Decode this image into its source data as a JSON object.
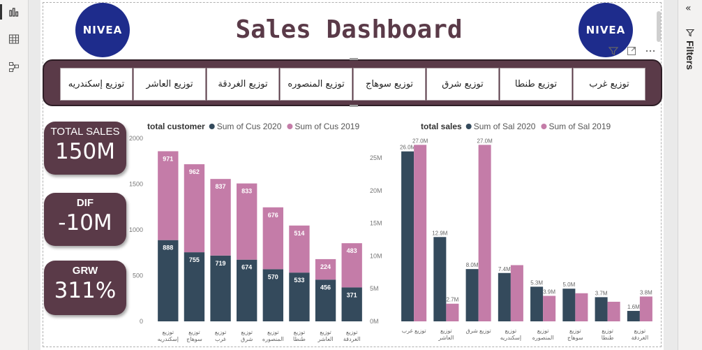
{
  "dashboard": {
    "title": "Sales Dashboard",
    "logo_text": "NIVEA"
  },
  "filters_pane": {
    "label": "Filters"
  },
  "tabs": [
    "توزيع إسكندريه",
    "توزيع العاشر",
    "توزيع الغردقة",
    "توزيع المنصوره",
    "توزيع سوهاج",
    "توزيع شرق",
    "توزيع طنطا",
    "توزيع غرب"
  ],
  "kpis": [
    {
      "label": "TOTAL SALES",
      "value": "150M"
    },
    {
      "label": "DIF",
      "value": "-10M"
    },
    {
      "label": "GRW",
      "value": "311%"
    }
  ],
  "colors": {
    "accent": "#5a3a48",
    "series_2020": "#344a5c",
    "series_2019": "#c47ca8",
    "logo": "#1e2c8c"
  },
  "chart_data": [
    {
      "type": "bar",
      "stacked": true,
      "title": "total customer",
      "categories": [
        "توزيع إسكندريه",
        "توزيع سوهاج",
        "توزيع غرب",
        "توزيع شرق",
        "توزيع المنصوره",
        "توزيع طنطا",
        "توزيع العاشر",
        "توزيع الغردقة"
      ],
      "series": [
        {
          "name": "Sum of Cus 2020",
          "values": [
            888,
            755,
            719,
            674,
            570,
            533,
            456,
            371
          ]
        },
        {
          "name": "Sum of Cus  2019",
          "values": [
            971,
            962,
            837,
            833,
            676,
            514,
            224,
            483
          ]
        }
      ],
      "ylim": [
        0,
        2000
      ],
      "yticks": [
        "0",
        "500",
        "1000",
        "1500",
        "2000"
      ],
      "legend": "top"
    },
    {
      "type": "bar",
      "stacked": false,
      "title": "total sales",
      "categories": [
        "توزيع غرب",
        "توزيع العاشر",
        "توزيع شرق",
        "توزيع إسكندريه",
        "توزيع المنصوره",
        "توزيع سوهاج",
        "توزيع طنطا",
        "توزيع الغردقة"
      ],
      "series": [
        {
          "name": "Sum of Sal 2020",
          "values": [
            26.0,
            12.9,
            8.0,
            7.4,
            5.3,
            5.0,
            3.7,
            1.6
          ],
          "labels": [
            "26.0M",
            "12.9M",
            "8.0M",
            "7.4M",
            "5.3M",
            "5.0M",
            "3.7M",
            "1.6M"
          ]
        },
        {
          "name": "Sum of Sal 2019",
          "values": [
            27.0,
            2.7,
            27.0,
            8.6,
            3.9,
            4.3,
            3.0,
            3.8
          ],
          "labels": [
            "27.0M",
            "2.7M",
            "27.0M",
            "",
            "3.9M",
            "",
            "",
            "3.8M"
          ]
        }
      ],
      "ylim": [
        0,
        28
      ],
      "yticks": [
        "0M",
        "5M",
        "10M",
        "15M",
        "20M",
        "25M"
      ],
      "legend": "top"
    }
  ]
}
